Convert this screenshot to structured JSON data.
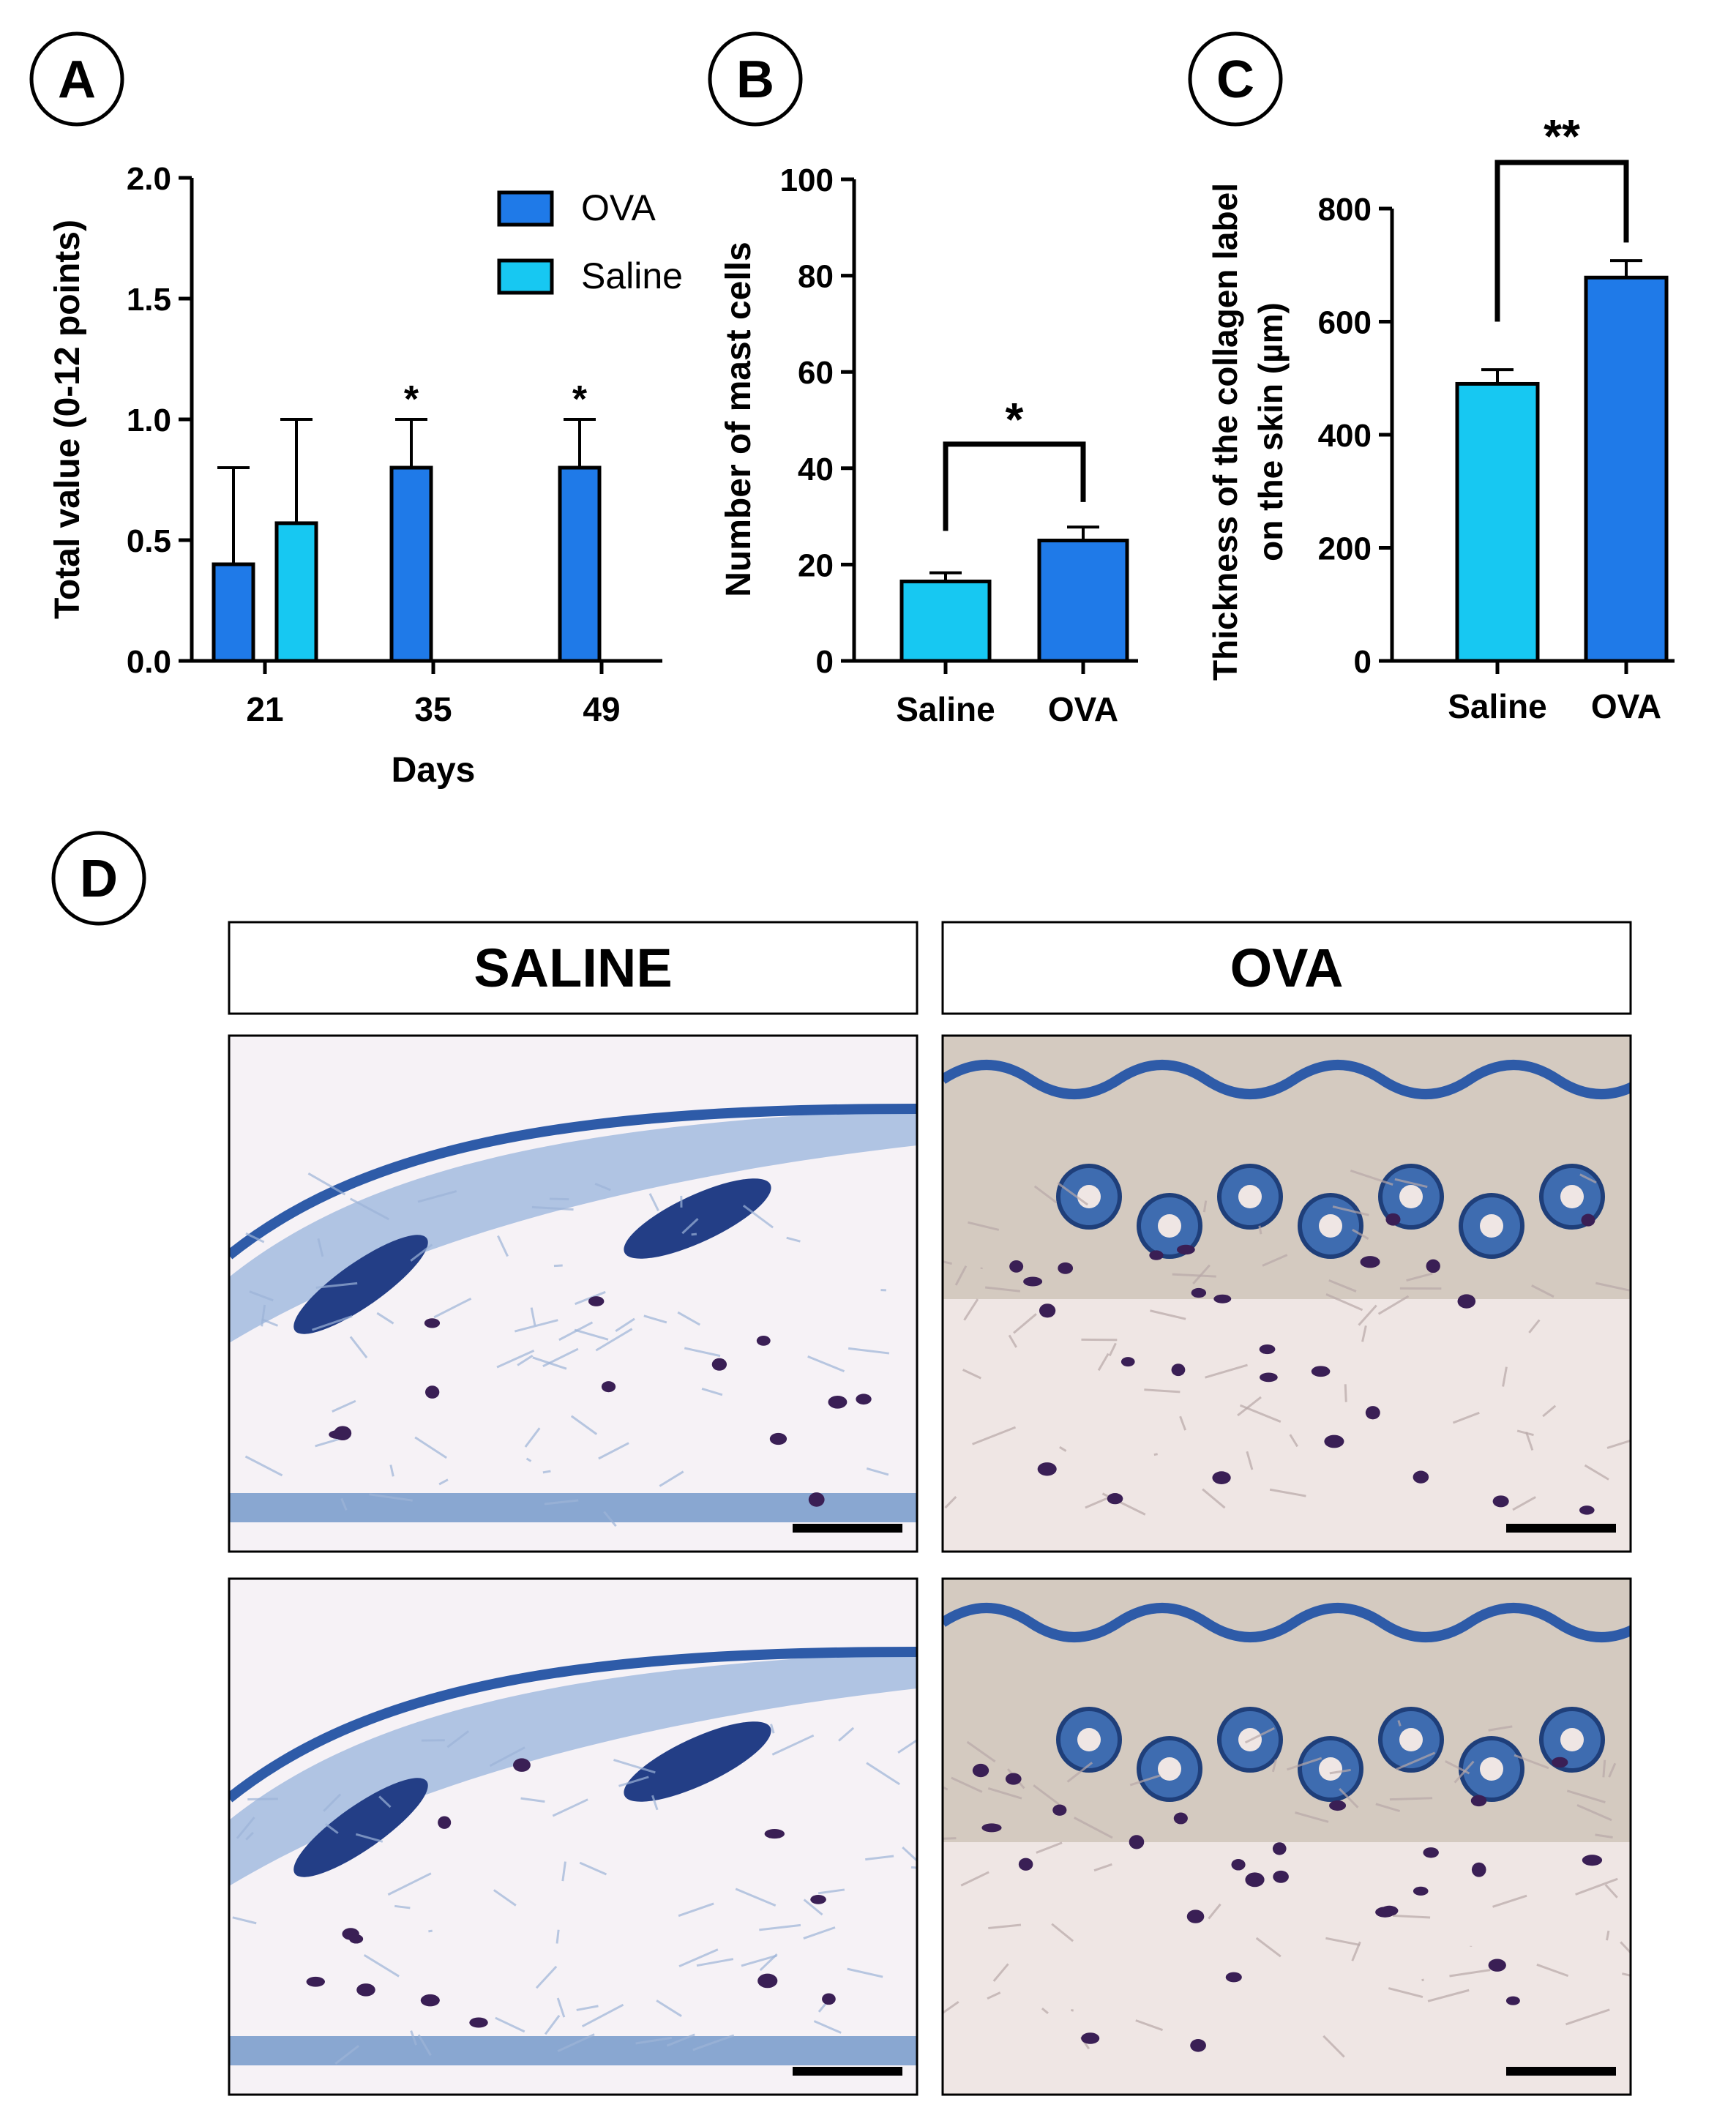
{
  "panel_letters": {
    "a": "A",
    "b": "B",
    "c": "C",
    "d": "D"
  },
  "colors": {
    "ova": "#1F7AE8",
    "saline": "#17C8F2",
    "axis": "#000000",
    "box": "#ffffff",
    "tissue_bg": "#F4EEF0",
    "stain_blue": "#2E5BA8",
    "stain_purple": "#3A1F55"
  },
  "chart_data": [
    {
      "panel": "A",
      "type": "bar",
      "ylabel": "Total value (0-12 points)",
      "xlabel": "Days",
      "ylim": [
        0,
        2.0
      ],
      "yticks": [
        0.0,
        0.5,
        1.0,
        1.5,
        2.0
      ],
      "ytick_labels": [
        "0.0",
        "0.5",
        "1.0",
        "1.5",
        "2.0"
      ],
      "categories": [
        "21",
        "35",
        "49"
      ],
      "legend_position": "top-right",
      "series": [
        {
          "name": "OVA",
          "values": [
            0.4,
            0.8,
            0.8
          ],
          "errors": [
            0.4,
            0.2,
            0.2
          ]
        },
        {
          "name": "Saline",
          "values": [
            0.57,
            null,
            null
          ],
          "errors": [
            0.43,
            null,
            null
          ]
        }
      ],
      "significance": [
        {
          "category": "35",
          "label": "*"
        },
        {
          "category": "49",
          "label": "*"
        }
      ]
    },
    {
      "panel": "B",
      "type": "bar",
      "ylabel": "Number of mast cells",
      "xlabel": "",
      "ylim": [
        0,
        100
      ],
      "yticks": [
        0,
        20,
        40,
        60,
        80,
        100
      ],
      "ytick_labels": [
        "0",
        "20",
        "40",
        "60",
        "80",
        "100"
      ],
      "categories": [
        "Saline",
        "OVA"
      ],
      "values": [
        16.5,
        25
      ],
      "errors": [
        1.8,
        2.8
      ],
      "significance": [
        {
          "between": [
            "Saline",
            "OVA"
          ],
          "label": "*"
        }
      ]
    },
    {
      "panel": "C",
      "type": "bar",
      "ylabel": [
        "Thickness of the collagen label",
        "on the skin (µm)"
      ],
      "xlabel": "",
      "ylim": [
        0,
        850
      ],
      "yticks": [
        0,
        200,
        400,
        600,
        800
      ],
      "ytick_labels": [
        "0",
        "200",
        "400",
        "600",
        "800"
      ],
      "categories": [
        "Saline",
        "OVA"
      ],
      "values": [
        490,
        678
      ],
      "errors": [
        25,
        30
      ],
      "significance": [
        {
          "between": [
            "Saline",
            "OVA"
          ],
          "label": "**"
        }
      ]
    }
  ],
  "micrographs": {
    "headers": [
      "SALINE",
      "OVA"
    ]
  }
}
